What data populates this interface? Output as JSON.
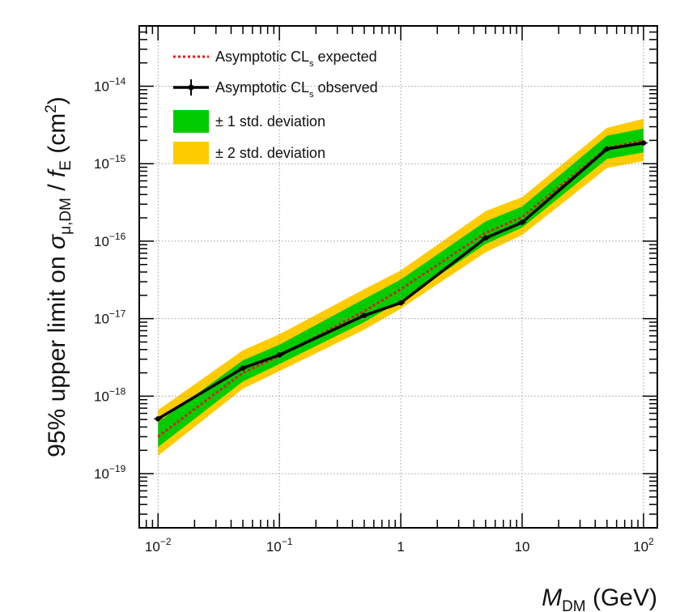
{
  "chart_data": {
    "type": "line",
    "x_scale": "log",
    "y_scale": "log",
    "xlim": [
      0.007,
      130
    ],
    "ylim": [
      2e-20,
      6e-14
    ],
    "grid": true,
    "legend_position": "top-left",
    "x": [
      0.01,
      0.05,
      0.1,
      0.5,
      1,
      5,
      10,
      50,
      100
    ],
    "x_ticks": [
      {
        "value": 0.01,
        "base": "10",
        "exp": "−2"
      },
      {
        "value": 0.1,
        "base": "10",
        "exp": "−1"
      },
      {
        "value": 1,
        "base": "1",
        "exp": ""
      },
      {
        "value": 10,
        "base": "10",
        "exp": ""
      },
      {
        "value": 100,
        "base": "10",
        "exp": "2"
      }
    ],
    "y_ticks": [
      {
        "value": 1e-19,
        "base": "10",
        "exp": "−19"
      },
      {
        "value": 1e-18,
        "base": "10",
        "exp": "−18"
      },
      {
        "value": 1e-17,
        "base": "10",
        "exp": "−17"
      },
      {
        "value": 1e-16,
        "base": "10",
        "exp": "−16"
      },
      {
        "value": 1e-15,
        "base": "10",
        "exp": "−15"
      },
      {
        "value": 1e-14,
        "base": "10",
        "exp": "−14"
      }
    ],
    "series": [
      {
        "name": "Asymptotic CL_s expected",
        "style": "dotted",
        "color": "#e8141a",
        "values": [
          3e-19,
          2e-18,
          3.3e-18,
          1.25e-17,
          2.4e-17,
          1.28e-16,
          2.05e-16,
          1.6e-15,
          2e-15
        ]
      },
      {
        "name": "Asymptotic CL_s observed",
        "style": "solid-with-markers",
        "color": "#000000",
        "values": [
          5.1e-19,
          2.3e-18,
          3.4e-18,
          1.1e-17,
          1.6e-17,
          1.1e-16,
          1.75e-16,
          1.55e-15,
          1.85e-15
        ]
      }
    ],
    "bands": [
      {
        "name": "± 2 std. deviation",
        "color": "#ffcc00",
        "lower": [
          1.7e-19,
          1.25e-18,
          2.1e-18,
          7.2e-18,
          1.35e-17,
          7.2e-17,
          1.2e-16,
          8.8e-16,
          1.08e-15
        ],
        "upper": [
          6.6e-19,
          3.9e-18,
          6.3e-18,
          2.4e-17,
          4.2e-17,
          2.45e-16,
          3.7e-16,
          2.9e-15,
          3.8e-15
        ]
      },
      {
        "name": "± 1 std. deviation",
        "color": "#00cc00",
        "lower": [
          2.2e-19,
          1.55e-18,
          2.6e-18,
          9e-18,
          1.7e-17,
          9.2e-17,
          1.5e-16,
          1.15e-15,
          1.4e-15
        ],
        "upper": [
          4.6e-19,
          2.9e-18,
          4.6e-18,
          1.8e-17,
          3.2e-17,
          1.8e-16,
          2.8e-16,
          2.3e-15,
          2.85e-15
        ]
      }
    ],
    "legend": [
      {
        "kind": "dotted",
        "label": "Asymptotic CL",
        "sub": "s",
        "rest": " expected",
        "color": "#e8141a"
      },
      {
        "kind": "marker",
        "label": "Asymptotic CL",
        "sub": "s",
        "rest": " observed",
        "color": "#000000"
      },
      {
        "kind": "box",
        "label": "± 1 std. deviation",
        "sub": "",
        "rest": "",
        "color": "#00cc00"
      },
      {
        "kind": "box",
        "label": "± 2 std. deviation",
        "sub": "",
        "rest": "",
        "color": "#ffcc00"
      }
    ],
    "xlabel": {
      "symbol": "M",
      "sub": "DM",
      "rest": " (GeV)"
    },
    "ylabel": {
      "prefix": "95% upper limit on ",
      "sigma": "σ",
      "sigma_sub": "μ,DM",
      "slash": " / ",
      "f": "f",
      "f_sub": "E",
      "unit": " (cm",
      "unit_sup": "2",
      "unit_end": ")"
    }
  }
}
